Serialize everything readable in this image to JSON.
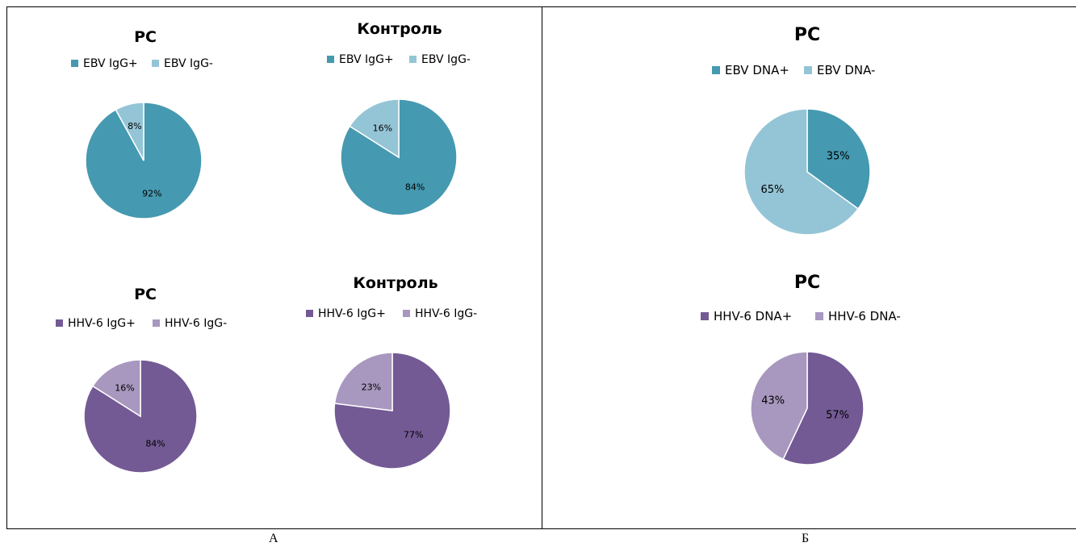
{
  "panels": {
    "a_label": "А",
    "b_label": "Б"
  },
  "chart_data": [
    {
      "type": "pie",
      "title": "РС",
      "categories": [
        "EBV IgG+",
        "EBV IgG-"
      ],
      "values": [
        92,
        8
      ],
      "labels": [
        "92%",
        "8%"
      ],
      "colors": [
        "#4599B0",
        "#94C5D6"
      ],
      "legend_position": "top"
    },
    {
      "type": "pie",
      "title": "Контроль",
      "categories": [
        "EBV IgG+",
        "EBV IgG-"
      ],
      "values": [
        84,
        16
      ],
      "labels": [
        "84%",
        "16%"
      ],
      "colors": [
        "#4599B0",
        "#94C5D6"
      ],
      "legend_position": "top"
    },
    {
      "type": "pie",
      "title": "РС",
      "categories": [
        "HHV-6 IgG+",
        "HHV-6 IgG-"
      ],
      "values": [
        84,
        16
      ],
      "labels": [
        "84%",
        "16%"
      ],
      "colors": [
        "#735A94",
        "#A897BF"
      ],
      "legend_position": "top"
    },
    {
      "type": "pie",
      "title": "Контроль",
      "categories": [
        "HHV-6 IgG+",
        "HHV-6 IgG-"
      ],
      "values": [
        77,
        23
      ],
      "labels": [
        "77%",
        "23%"
      ],
      "colors": [
        "#735A94",
        "#A897BF"
      ],
      "legend_position": "top"
    },
    {
      "type": "pie",
      "title": "РС",
      "categories": [
        "EBV DNA+",
        "EBV DNA-"
      ],
      "values": [
        35,
        65
      ],
      "labels": [
        "35%",
        "65%"
      ],
      "colors": [
        "#4599B0",
        "#94C5D6"
      ],
      "legend_position": "top"
    },
    {
      "type": "pie",
      "title": "РС",
      "categories": [
        "HHV-6 DNA+",
        "HHV-6 DNA-"
      ],
      "values": [
        57,
        43
      ],
      "labels": [
        "57%",
        "43%"
      ],
      "colors": [
        "#735A94",
        "#A897BF"
      ],
      "legend_position": "top"
    }
  ]
}
